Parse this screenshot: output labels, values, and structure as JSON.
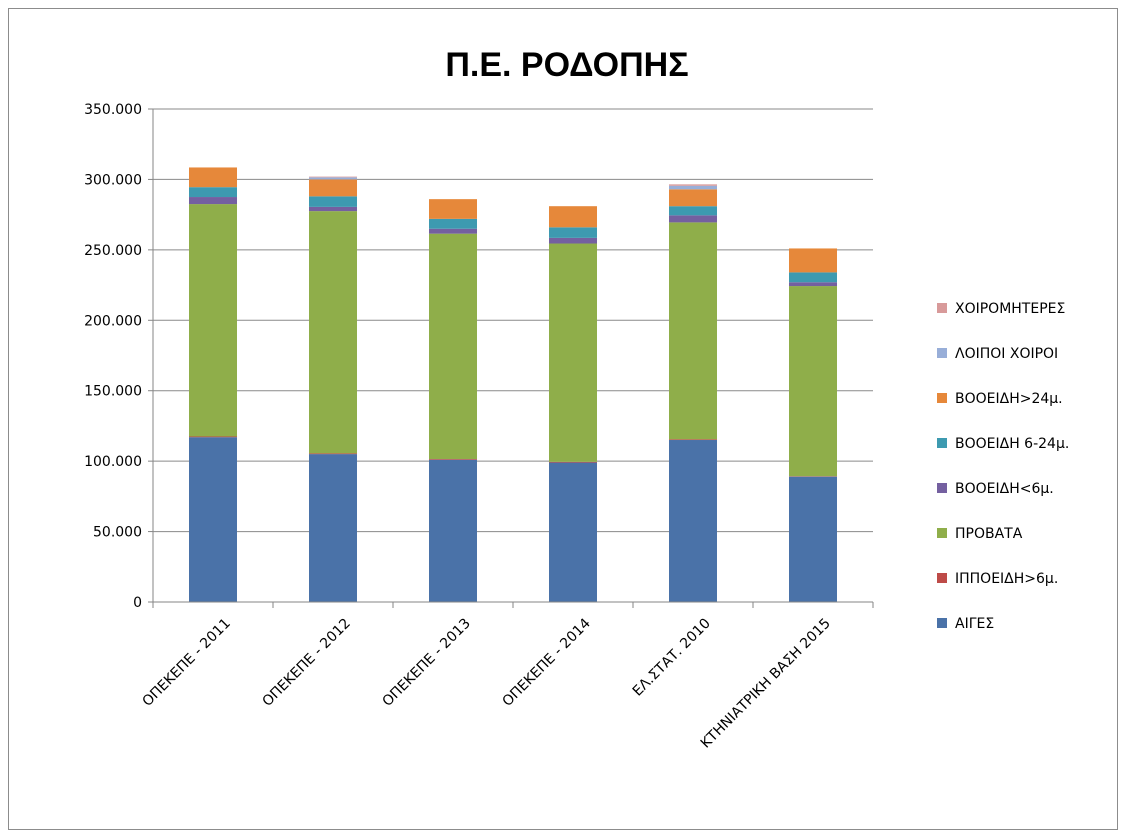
{
  "chart_data": {
    "type": "bar",
    "stacked": true,
    "title": "Π.Ε. ΡΟΔΟΠΗΣ",
    "xlabel": "",
    "ylabel": "",
    "ylim": [
      0,
      350000
    ],
    "yticks": [
      0,
      50000,
      100000,
      150000,
      200000,
      250000,
      300000,
      350000
    ],
    "ytick_labels": [
      "0",
      "50.000",
      "100.000",
      "150.000",
      "200.000",
      "250.000",
      "300.000",
      "350.000"
    ],
    "grid": true,
    "legend_position": "right",
    "categories": [
      "ΟΠΕΚΕΠΕ - 2011",
      "ΟΠΕΚΕΠΕ - 2012",
      "ΟΠΕΚΕΠΕ - 2013",
      "ΟΠΕΚΕΠΕ - 2014",
      "ΕΛ.ΣΤΑΤ. 2010",
      "ΚΤΗΝΙΑΤΡΙΚΗ ΒΑΣΗ 2015"
    ],
    "series": [
      {
        "name": "ΑΙΓΕΣ",
        "color": "#4a72a8",
        "values": [
          117000,
          105000,
          101000,
          99000,
          115000,
          89000
        ]
      },
      {
        "name": "ΙΠΠΟΕΙΔΗ>6μ.",
        "color": "#be4b48",
        "values": [
          500,
          500,
          500,
          500,
          500,
          300
        ]
      },
      {
        "name": "ΠΡΟΒΑΤΑ",
        "color": "#8fae4a",
        "values": [
          165000,
          172000,
          160000,
          155000,
          154000,
          135000
        ]
      },
      {
        "name": "ΒΟΟΕΙΔΗ<6μ.",
        "color": "#7460a0",
        "values": [
          5000,
          3000,
          3500,
          4000,
          5000,
          2700
        ]
      },
      {
        "name": "ΒΟΟΕΙΔΗ 6-24μ.",
        "color": "#3d9ab0",
        "values": [
          7000,
          7500,
          7000,
          7500,
          6500,
          7000
        ]
      },
      {
        "name": "ΒΟΟΕΙΔΗ>24μ.",
        "color": "#e6883a",
        "values": [
          14000,
          12000,
          14000,
          15000,
          12000,
          17000
        ]
      },
      {
        "name": "ΛΟΙΠΟΙ ΧΟΙΡΟΙ",
        "color": "#98aed8",
        "values": [
          0,
          1500,
          0,
          0,
          2500,
          0
        ]
      },
      {
        "name": "ΧΟΙΡΟΜΗΤΕΡΕΣ",
        "color": "#d89a9a",
        "values": [
          0,
          500,
          0,
          0,
          1000,
          0
        ]
      }
    ],
    "legend_order": [
      "ΧΟΙΡΟΜΗΤΕΡΕΣ",
      "ΛΟΙΠΟΙ ΧΟΙΡΟΙ",
      "ΒΟΟΕΙΔΗ>24μ.",
      "ΒΟΟΕΙΔΗ 6-24μ.",
      "ΒΟΟΕΙΔΗ<6μ.",
      "ΠΡΟΒΑΤΑ",
      "ΙΠΠΟΕΙΔΗ>6μ.",
      "ΑΙΓΕΣ"
    ]
  }
}
